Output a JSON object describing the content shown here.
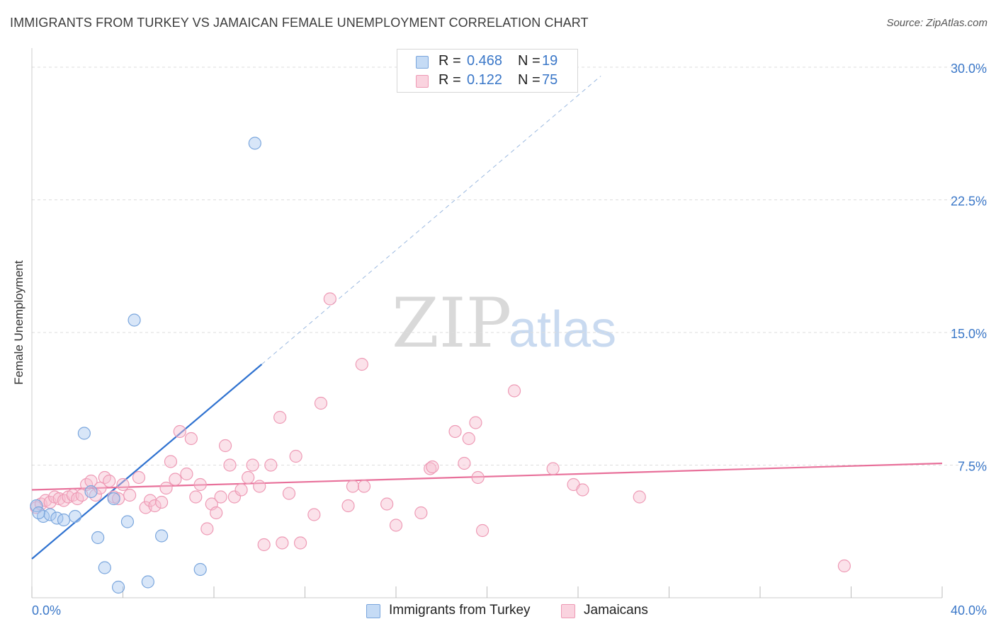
{
  "title": "IMMIGRANTS FROM TURKEY VS JAMAICAN FEMALE UNEMPLOYMENT CORRELATION CHART",
  "source": "Source: ZipAtlas.com",
  "watermark": {
    "zip": "ZIP",
    "atlas": "atlas"
  },
  "colors": {
    "blue_fill": "#a9c8f0",
    "blue_stroke": "#7aa6dd",
    "blue_line": "#2f72d0",
    "pink_fill": "#f7bfd0",
    "pink_stroke": "#ee9ab5",
    "pink_line": "#e8709a",
    "axis_text": "#3a77c8",
    "grid": "#dddddd"
  },
  "legend": {
    "rows": [
      {
        "r_label": "R =",
        "r_value": "0.468",
        "n_label": "N =",
        "n_value": "19"
      },
      {
        "r_label": "R =",
        "r_value": "0.122",
        "n_label": "N =",
        "n_value": "75"
      }
    ]
  },
  "bottom_legend": {
    "blue": "Immigrants from Turkey",
    "pink": "Jamaicans"
  },
  "chart_data": {
    "type": "scatter",
    "title": "IMMIGRANTS FROM TURKEY VS JAMAICAN FEMALE UNEMPLOYMENT CORRELATION CHART",
    "xlabel": "",
    "ylabel": "Female Unemployment",
    "xlim": [
      0,
      40
    ],
    "ylim": [
      0,
      31
    ],
    "x_tick_labels": [
      "0.0%",
      "40.0%"
    ],
    "y_ticks": [
      7.5,
      15.0,
      22.5,
      30.0
    ],
    "y_tick_labels": [
      "7.5%",
      "15.0%",
      "22.5%",
      "30.0%"
    ],
    "grid": true,
    "series": [
      {
        "name": "Immigrants from Turkey",
        "color": "blue",
        "r": 0.468,
        "n": 19,
        "trend": {
          "x0": 0,
          "y0": 2.2,
          "x1": 10.1,
          "y1": 13.2,
          "dash_to_x": 25.0,
          "dash_to_y": 29.5
        },
        "points": [
          [
            0.2,
            5.2
          ],
          [
            0.5,
            4.6
          ],
          [
            0.8,
            4.7
          ],
          [
            1.1,
            4.5
          ],
          [
            1.4,
            4.4
          ],
          [
            1.9,
            4.6
          ],
          [
            2.3,
            9.3
          ],
          [
            2.6,
            6.0
          ],
          [
            2.9,
            3.4
          ],
          [
            3.2,
            1.7
          ],
          [
            3.6,
            5.6
          ],
          [
            3.8,
            0.6
          ],
          [
            4.2,
            4.3
          ],
          [
            4.5,
            15.7
          ],
          [
            5.1,
            0.9
          ],
          [
            5.7,
            3.5
          ],
          [
            7.4,
            1.6
          ],
          [
            9.8,
            25.7
          ],
          [
            0.3,
            4.8
          ]
        ]
      },
      {
        "name": "Jamaicans",
        "color": "pink",
        "r": 0.122,
        "n": 75,
        "trend": {
          "x0": 0,
          "y0": 6.1,
          "x1": 40,
          "y1": 7.6
        },
        "points": [
          [
            0.2,
            5.1
          ],
          [
            0.4,
            5.3
          ],
          [
            0.6,
            5.5
          ],
          [
            0.8,
            5.4
          ],
          [
            1.0,
            5.7
          ],
          [
            1.2,
            5.6
          ],
          [
            1.4,
            5.5
          ],
          [
            1.6,
            5.7
          ],
          [
            1.8,
            5.8
          ],
          [
            2.0,
            5.6
          ],
          [
            2.2,
            5.8
          ],
          [
            2.4,
            6.4
          ],
          [
            2.6,
            6.6
          ],
          [
            2.8,
            5.8
          ],
          [
            3.0,
            6.2
          ],
          [
            3.2,
            6.8
          ],
          [
            3.4,
            6.6
          ],
          [
            3.6,
            5.7
          ],
          [
            3.8,
            5.6
          ],
          [
            4.0,
            6.4
          ],
          [
            4.3,
            5.8
          ],
          [
            4.7,
            6.8
          ],
          [
            5.0,
            5.1
          ],
          [
            5.2,
            5.5
          ],
          [
            5.4,
            5.2
          ],
          [
            5.7,
            5.4
          ],
          [
            5.9,
            6.2
          ],
          [
            6.1,
            7.7
          ],
          [
            6.3,
            6.7
          ],
          [
            6.5,
            9.4
          ],
          [
            6.8,
            7.0
          ],
          [
            7.0,
            9.0
          ],
          [
            7.2,
            5.7
          ],
          [
            7.4,
            6.4
          ],
          [
            7.7,
            3.9
          ],
          [
            7.9,
            5.3
          ],
          [
            8.1,
            4.8
          ],
          [
            8.3,
            5.7
          ],
          [
            8.5,
            8.6
          ],
          [
            8.7,
            7.5
          ],
          [
            8.9,
            5.7
          ],
          [
            9.2,
            6.1
          ],
          [
            9.5,
            6.8
          ],
          [
            9.7,
            7.5
          ],
          [
            10.0,
            6.3
          ],
          [
            10.2,
            3.0
          ],
          [
            10.5,
            7.5
          ],
          [
            10.9,
            10.2
          ],
          [
            11.0,
            3.1
          ],
          [
            11.3,
            5.9
          ],
          [
            11.6,
            8.0
          ],
          [
            11.8,
            3.1
          ],
          [
            12.4,
            4.7
          ],
          [
            12.7,
            11.0
          ],
          [
            13.1,
            16.9
          ],
          [
            13.9,
            5.2
          ],
          [
            14.1,
            6.3
          ],
          [
            14.5,
            13.2
          ],
          [
            14.6,
            6.3
          ],
          [
            15.6,
            5.3
          ],
          [
            16.0,
            4.1
          ],
          [
            17.1,
            4.8
          ],
          [
            17.5,
            7.3
          ],
          [
            17.6,
            7.4
          ],
          [
            18.6,
            9.4
          ],
          [
            19.0,
            7.6
          ],
          [
            19.2,
            9.0
          ],
          [
            19.5,
            9.9
          ],
          [
            19.6,
            6.8
          ],
          [
            19.8,
            3.8
          ],
          [
            21.2,
            11.7
          ],
          [
            22.9,
            7.3
          ],
          [
            23.8,
            6.4
          ],
          [
            24.2,
            6.1
          ],
          [
            26.7,
            5.7
          ],
          [
            35.7,
            1.8
          ]
        ]
      }
    ]
  }
}
